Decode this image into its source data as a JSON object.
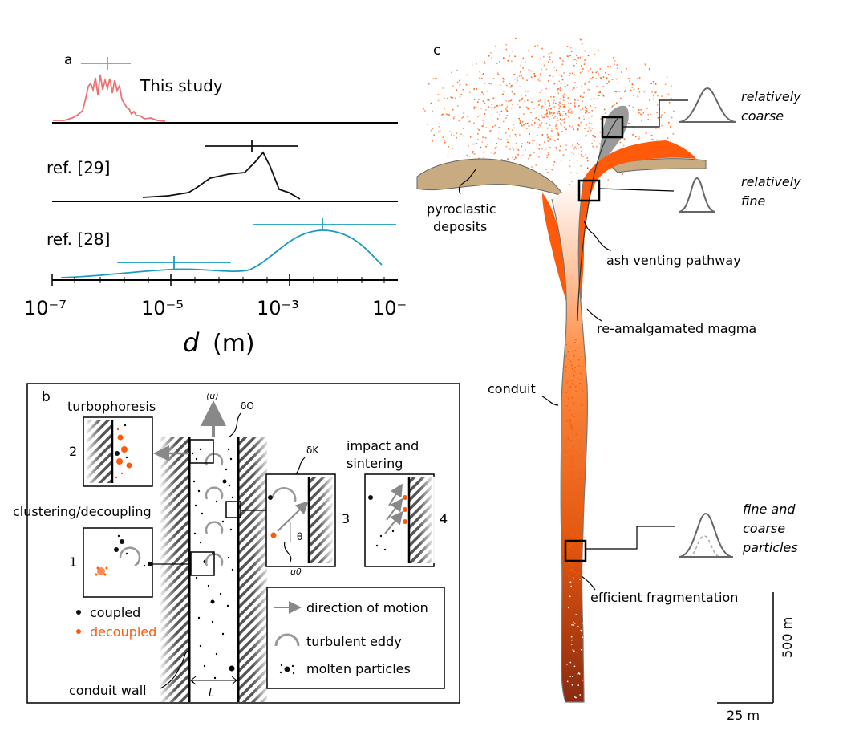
{
  "panel_a": {
    "letter": "a",
    "series": [
      {
        "label": "This study",
        "color": "#f07070"
      },
      {
        "label": "ref. [29]",
        "color": "#111111"
      },
      {
        "label": "ref. [28]",
        "color": "#1a9bc0"
      }
    ],
    "ticks": [
      "10⁻⁷",
      "10⁻⁵",
      "10⁻³",
      "10⁻"
    ],
    "xlabel_var": "d",
    "xlabel_unit": "(m)"
  },
  "panel_b": {
    "letter": "b",
    "turbophoresis": "turbophoresis",
    "clustering": "clustering/decoupling",
    "impact_line1": "impact and",
    "impact_line2": "sintering",
    "num1": "1",
    "num2": "2",
    "num3": "3",
    "num4": "4",
    "u_mean": "⟨u⟩",
    "delta_o": "δO",
    "delta_k": "δK",
    "theta": "θ",
    "u_theta": "uθ",
    "coupled": "coupled",
    "decoupled": "decoupled",
    "conduit_wall": "conduit wall",
    "L": "L",
    "legend_motion": "direction of motion",
    "legend_eddy": "turbulent eddy",
    "legend_molten": "molten particles"
  },
  "panel_c": {
    "letter": "c",
    "coarse_1": "relatively",
    "coarse_2": "coarse",
    "fine_1": "relatively",
    "fine_2": "fine",
    "fc_1": "fine and",
    "fc_2": "coarse",
    "fc_3": "particles",
    "pyro_1": "pyroclastic",
    "pyro_2": "deposits",
    "ash": "ash venting pathway",
    "reamal": "re-amalgamated magma",
    "conduit": "conduit",
    "frag": "efficient fragmentation",
    "scale_v": "500 m",
    "scale_h": "25 m"
  },
  "colors": {
    "orange": "#ff5a0a",
    "tan": "#c8ab80",
    "grey": "#9a9a9a"
  }
}
